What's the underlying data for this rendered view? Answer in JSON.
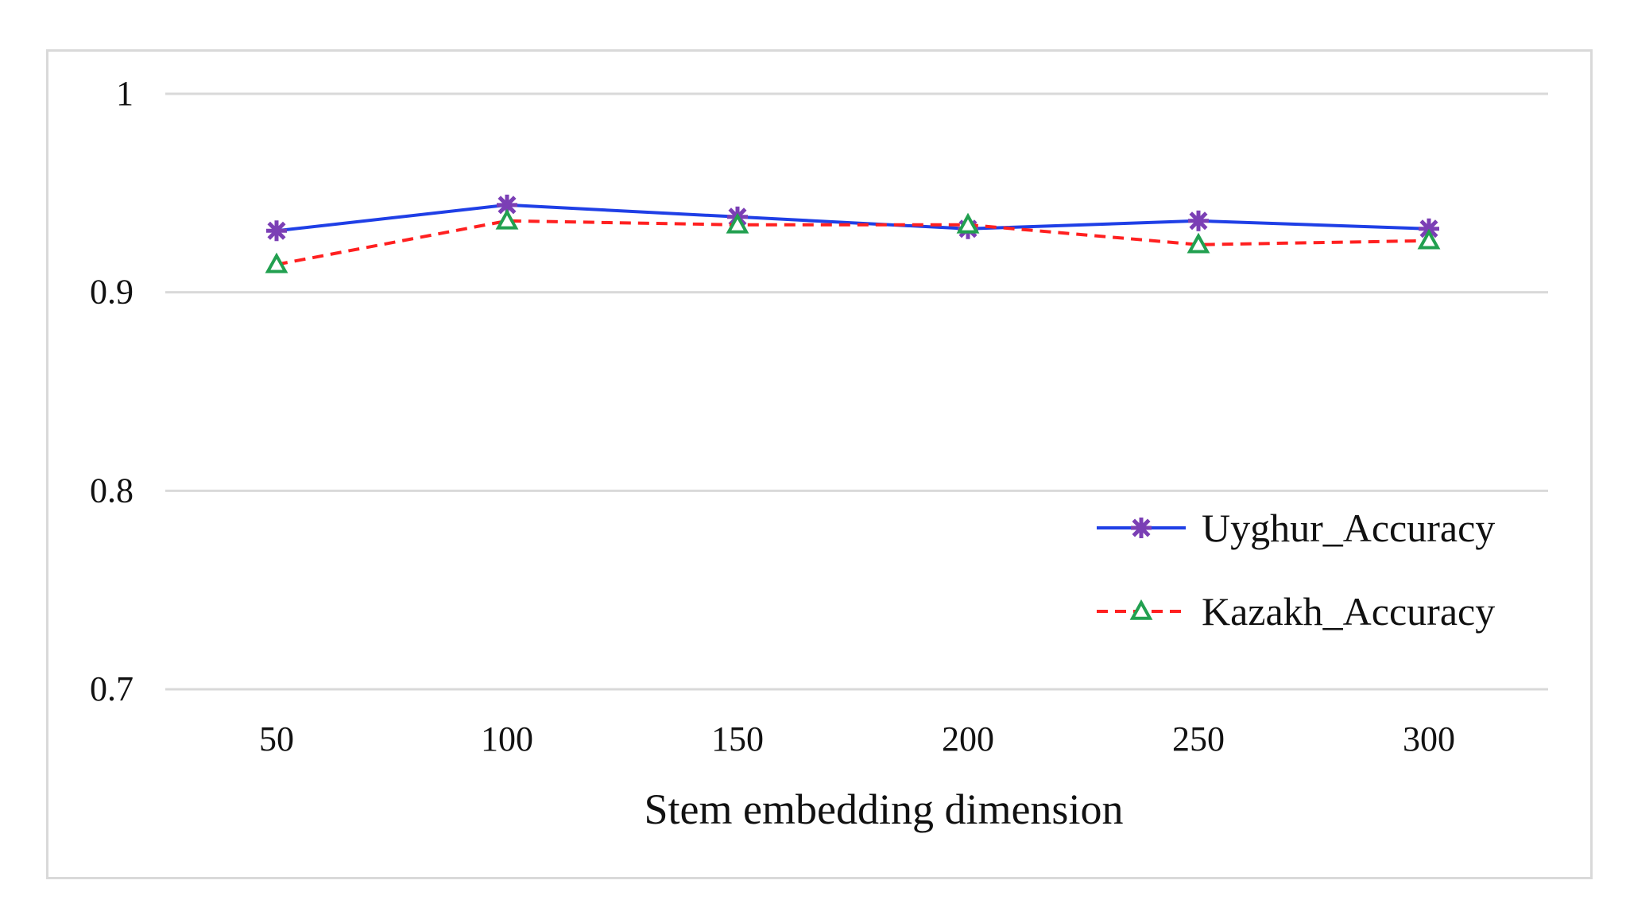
{
  "chart_data": {
    "type": "line",
    "title": "",
    "xlabel": "Stem embedding dimension",
    "ylabel": "",
    "categories": [
      "50",
      "100",
      "150",
      "200",
      "250",
      "300"
    ],
    "ylim": [
      0.7,
      1.0
    ],
    "yticks": [
      "0.7",
      "0.8",
      "0.9",
      "1"
    ],
    "grid": "horizontal",
    "legend_position": "right",
    "series": [
      {
        "name": "Uyghur_Accuracy",
        "values": [
          0.931,
          0.944,
          0.938,
          0.932,
          0.936,
          0.932
        ],
        "color": "#1f3fe6",
        "line_style": "solid",
        "marker": "asterisk",
        "marker_color": "#7b3fb5"
      },
      {
        "name": "Kazakh_Accuracy",
        "values": [
          0.914,
          0.936,
          0.934,
          0.934,
          0.924,
          0.926
        ],
        "color": "#ff2020",
        "line_style": "dashed",
        "marker": "triangle",
        "marker_color": "#22a050"
      }
    ]
  }
}
